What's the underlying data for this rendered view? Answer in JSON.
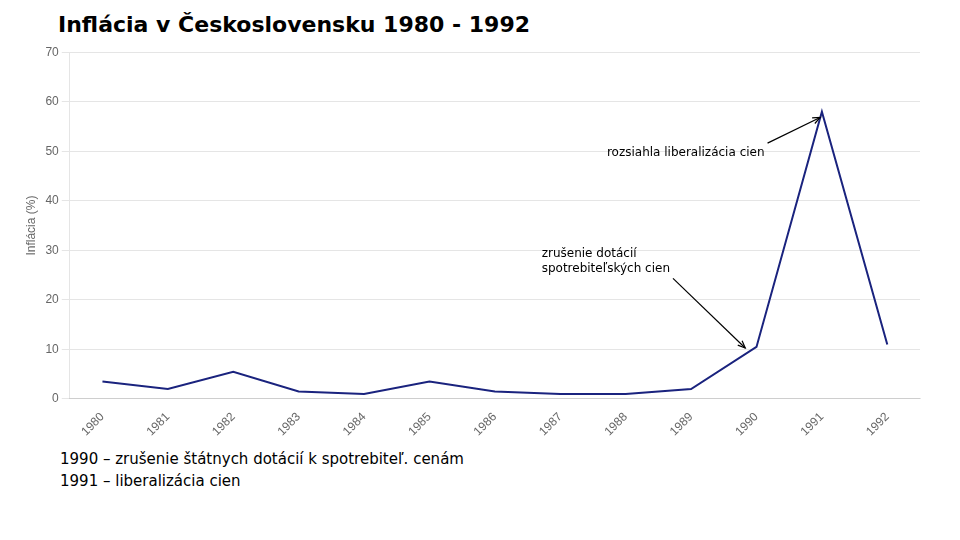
{
  "chart_data": {
    "type": "line",
    "title": "Inflácia v Československu 1980 - 1992",
    "ylabel": "Inflácia (%)",
    "x": [
      1980,
      1981,
      1982,
      1983,
      1984,
      1985,
      1986,
      1987,
      1988,
      1989,
      1990,
      1991,
      1992
    ],
    "values": [
      3.5,
      2.0,
      5.5,
      1.5,
      1.0,
      3.5,
      1.5,
      1.0,
      1.0,
      2.0,
      10.5,
      58.0,
      11.0
    ],
    "color": "#1a237e",
    "xlim": [
      1979.5,
      1992.5
    ],
    "xticks": [
      1980,
      1981,
      1982,
      1983,
      1984,
      1985,
      1986,
      1987,
      1988,
      1989,
      1990,
      1991,
      1992
    ],
    "ylim": [
      0,
      70
    ],
    "yticks": [
      0,
      10,
      20,
      30,
      40,
      50,
      60,
      70
    ],
    "grid": "y",
    "annotations": [
      {
        "text": "rozsiahla liberalizácia cien",
        "x": 1991.0,
        "y": 57.0
      },
      {
        "text": "zrušenie dotácií\nspotrebiteľských cien",
        "x": 1989.85,
        "y": 10.0
      }
    ],
    "footnotes": [
      "1990 – zrušenie štátnych dotácií k spotrebiteľ. cenám",
      "1991 – liberalizácia cien"
    ]
  }
}
